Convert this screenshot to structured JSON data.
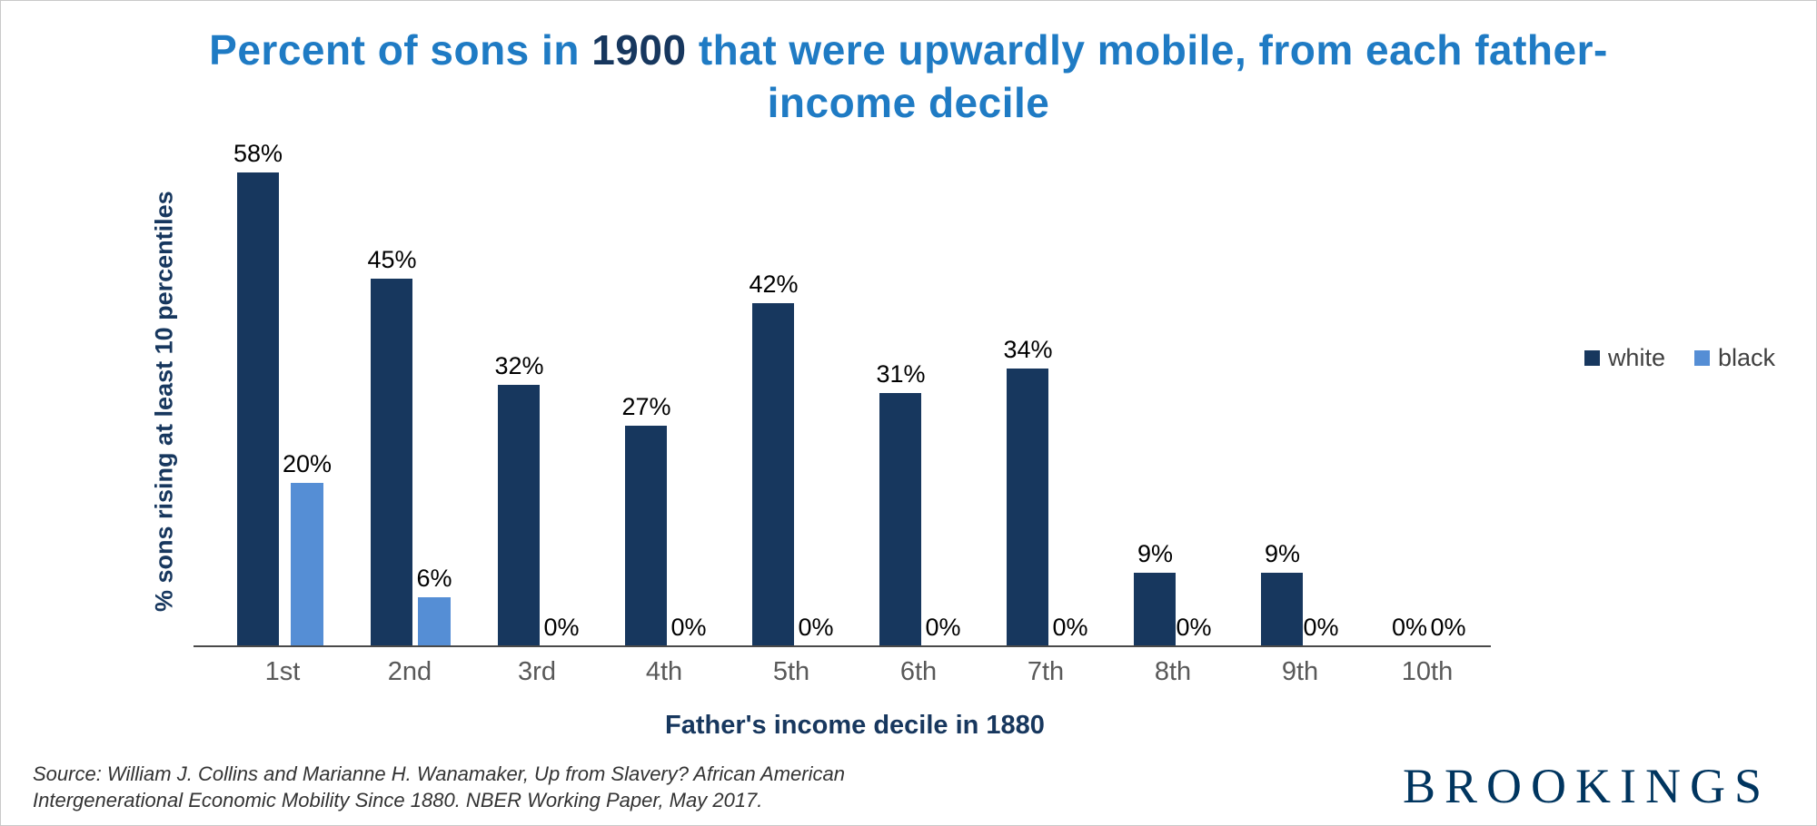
{
  "title": {
    "pre": "Percent of sons in ",
    "year": "1900",
    "post": " that were upwardly mobile, from each father-income decile"
  },
  "chart_data": {
    "type": "bar",
    "title": "Percent of sons in 1900 that were upwardly mobile, from each father-income decile",
    "categories": [
      "1st",
      "2nd",
      "3rd",
      "4th",
      "5th",
      "6th",
      "7th",
      "8th",
      "9th",
      "10th"
    ],
    "series": [
      {
        "name": "white",
        "color": "#17375E",
        "values": [
          58,
          45,
          32,
          27,
          42,
          31,
          34,
          9,
          9,
          0
        ]
      },
      {
        "name": "black",
        "color": "#558ED5",
        "values": [
          20,
          6,
          0,
          0,
          0,
          0,
          0,
          0,
          0,
          0
        ]
      }
    ],
    "ylabel": "% sons rising at least 10 percentiles",
    "xlabel": "Father's income decile in 1880",
    "ylim": [
      0,
      60
    ],
    "grid": false,
    "legend_position": "right",
    "data_label_format": "{value}%"
  },
  "legend": {
    "items": [
      {
        "label": "white",
        "color": "#17375E"
      },
      {
        "label": "black",
        "color": "#558ED5"
      }
    ]
  },
  "footer": {
    "source": "Source: William J. Collins and Marianne H. Wanamaker, Up from Slavery? African American Intergenerational Economic Mobility Since 1880. NBER Working Paper, May 2017.",
    "logo": "BROOKINGS"
  },
  "colors": {
    "title_blue": "#1F7BC4",
    "dark_navy": "#17375E",
    "light_blue": "#558ED5",
    "tick_gray": "#595959"
  }
}
